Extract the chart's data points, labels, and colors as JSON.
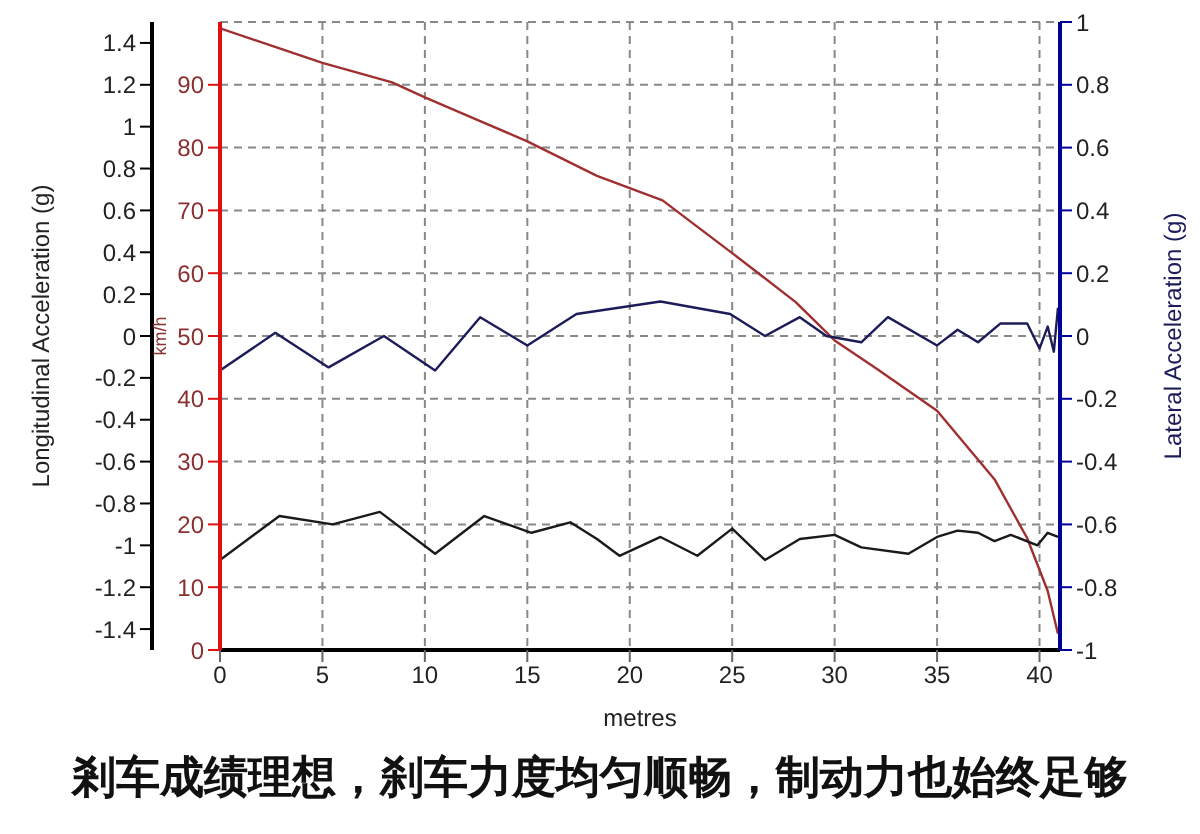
{
  "chart_data": {
    "type": "line",
    "xlabel": "metres",
    "ylabel": "km/h",
    "y2label": "Lateral Acceleration (g)",
    "y3label": "Longitudinal Acceleration (g)",
    "annotations": [
      "剎车成绩理想，刹车力度均匀顺畅，制动力也始终足够"
    ],
    "xlim": [
      0,
      41
    ],
    "xticks": [
      0,
      5,
      10,
      15,
      20,
      25,
      30,
      35,
      40
    ],
    "ylim": [
      0,
      100
    ],
    "yticks": [
      0,
      10,
      20,
      30,
      40,
      50,
      60,
      70,
      80,
      90
    ],
    "y2lim": [
      -1,
      1
    ],
    "y2ticks": [
      -1,
      -0.8,
      -0.6,
      -0.4,
      -0.2,
      0,
      0.2,
      0.4,
      0.6,
      0.8,
      1
    ],
    "y3lim": [
      -1.5,
      1.5
    ],
    "y3ticks": [
      -1.4,
      -1.2,
      -1,
      -0.8,
      -0.6,
      -0.4,
      -0.2,
      0,
      0.2,
      0.4,
      0.6,
      0.8,
      1,
      1.2,
      1.4
    ],
    "grid": true,
    "marker": "none",
    "series": [
      {
        "color": "#a03030",
        "axis": "y",
        "x": [
          0,
          5,
          8.4,
          10,
          12.5,
          15,
          18.4,
          21.6,
          25,
          28.1,
          30,
          32,
          35,
          37.8,
          39.4,
          40.4,
          40.9
        ],
        "values": [
          99,
          93.5,
          90.4,
          88,
          84.5,
          81,
          75.5,
          71.6,
          63.2,
          55.4,
          49.3,
          44.9,
          38.1,
          27.2,
          17.8,
          9.4,
          2.6
        ]
      },
      {
        "color": "#1c1c5a",
        "axis": "y2",
        "x": [
          0,
          2.7,
          5.3,
          8,
          10.5,
          12.7,
          15,
          17.4,
          21.5,
          24.9,
          26.6,
          28.3,
          29.6,
          31.3,
          32.6,
          35,
          36,
          37,
          38.1,
          39.4,
          40,
          40.4,
          40.7,
          40.9
        ],
        "values": [
          -0.11,
          0.01,
          -0.1,
          0,
          -0.11,
          0.06,
          -0.03,
          0.07,
          0.11,
          0.07,
          0,
          0.06,
          0,
          -0.02,
          0.06,
          -0.03,
          0.02,
          -0.02,
          0.04,
          0.04,
          -0.04,
          0.03,
          -0.05,
          0.09
        ]
      },
      {
        "color": "#1a1a1a",
        "axis": "y3",
        "x": [
          0,
          2.9,
          5.5,
          7.8,
          10.5,
          12.9,
          15.2,
          17.1,
          18.4,
          19.5,
          21.5,
          23.3,
          25,
          26.6,
          28.3,
          30,
          31.3,
          33.6,
          35,
          36,
          37,
          37.8,
          38.6,
          39.9,
          40.4,
          40.9
        ],
        "values": [
          -1.07,
          -0.86,
          -0.9,
          -0.84,
          -1.04,
          -0.86,
          -0.94,
          -0.89,
          -0.97,
          -1.05,
          -0.96,
          -1.05,
          -0.92,
          -1.07,
          -0.97,
          -0.95,
          -1.01,
          -1.04,
          -0.96,
          -0.93,
          -0.94,
          -0.98,
          -0.95,
          -1,
          -0.94,
          -0.96
        ]
      }
    ]
  }
}
